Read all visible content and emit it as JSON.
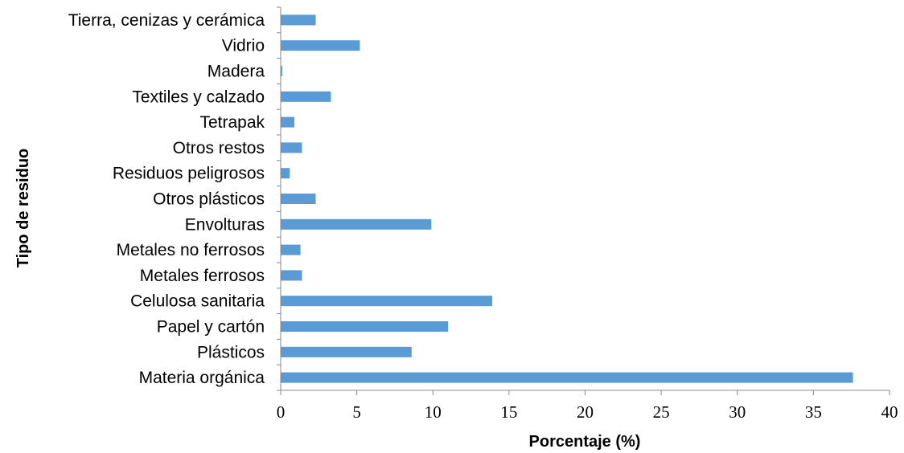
{
  "chart_data": {
    "type": "bar",
    "orientation": "horizontal",
    "categories": [
      "Materia orgánica",
      "Plásticos",
      "Papel y cartón",
      "Celulosa sanitaria",
      "Metales ferrosos",
      "Metales no ferrosos",
      "Envolturas",
      "Otros plásticos",
      "Residuos peligrosos",
      "Otros restos",
      "Tetrapak",
      "Textiles y calzado",
      "Madera",
      "Vidrio",
      "Tierra, cenizas y cerámica"
    ],
    "values": [
      37.6,
      8.6,
      11.0,
      13.9,
      1.4,
      1.3,
      9.9,
      2.3,
      0.6,
      1.4,
      0.9,
      3.3,
      0.1,
      5.2,
      2.3
    ],
    "xlabel": "Porcentaje (%)",
    "ylabel": "Tipo de residuo",
    "xlim": [
      0,
      40
    ],
    "xticks": [
      0,
      5,
      10,
      15,
      20,
      25,
      30,
      35,
      40
    ],
    "grid": false,
    "legend": "none",
    "bar_color": "#5B9BD5",
    "axis_color": "#888888"
  }
}
